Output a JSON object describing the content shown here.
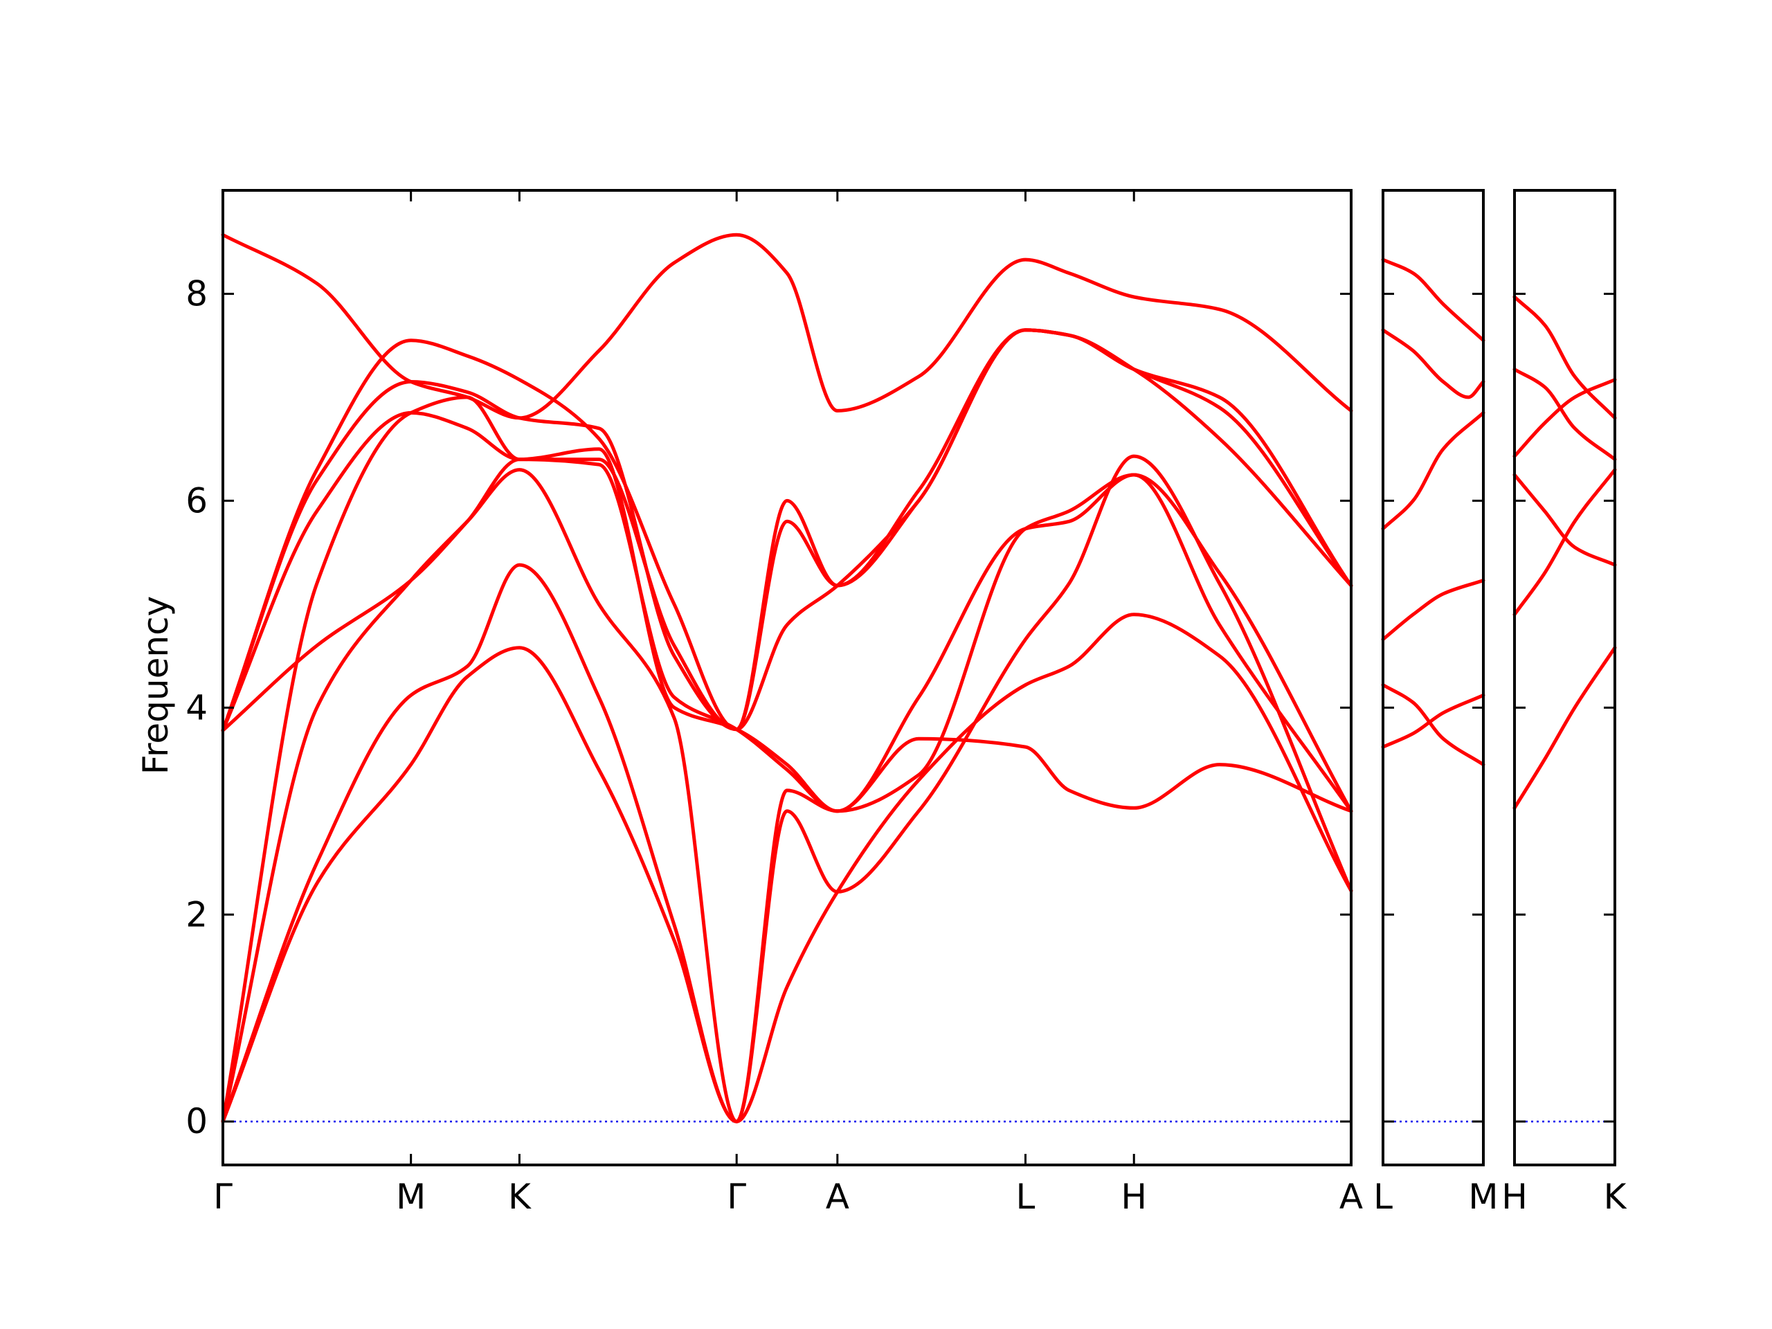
{
  "chart_data": {
    "type": "line",
    "title": "",
    "xlabel": "",
    "ylabel": "Frequency",
    "ylim": [
      -0.42,
      9.0
    ],
    "grid": false,
    "legend": "none",
    "colors": {
      "band": "#ff0000",
      "zero_line": "#0000ee",
      "axes": "#000000"
    },
    "y_ticks": [
      0,
      2,
      4,
      6,
      8
    ],
    "panels": [
      {
        "name": "panel-1",
        "xlim": [
          0,
          6.0
        ],
        "high_symmetry_points": [
          {
            "label": "Γ",
            "x": 0.0
          },
          {
            "label": "M",
            "x": 1.0
          },
          {
            "label": "K",
            "x": 1.577
          },
          {
            "label": "Γ",
            "x": 2.732
          },
          {
            "label": "A",
            "x": 3.268
          },
          {
            "label": "L",
            "x": 4.268
          },
          {
            "label": "H",
            "x": 4.845
          },
          {
            "label": "A",
            "x": 6.0
          }
        ],
        "series": [
          {
            "x": [
              0,
              0.5,
              1.0,
              1.3,
              1.577,
              2.0,
              2.4,
              2.732,
              3.0,
              3.268,
              3.7,
              4.268,
              4.5,
              4.845,
              5.3,
              6.0
            ],
            "values": [
              0.0,
              2.3,
              3.45,
              4.3,
              4.58,
              3.4,
              1.75,
              0.0,
              1.3,
              2.22,
              3.3,
              4.22,
              4.4,
              4.9,
              4.5,
              2.23
            ]
          },
          {
            "x": [
              0,
              0.5,
              1.0,
              1.3,
              1.577,
              2.0,
              2.4,
              2.732,
              3.0,
              3.268,
              3.7,
              4.268,
              4.5,
              4.845,
              5.3,
              6.0
            ],
            "values": [
              0.0,
              2.5,
              4.12,
              4.4,
              5.38,
              4.1,
              1.9,
              0.0,
              3.2,
              3.0,
              3.7,
              3.62,
              3.2,
              3.03,
              3.45,
              3.0
            ]
          },
          {
            "x": [
              0,
              0.5,
              1.0,
              1.3,
              1.577,
              2.0,
              2.4,
              2.732,
              3.0,
              3.268,
              3.7,
              4.268,
              4.5,
              4.845,
              5.3,
              6.0
            ],
            "values": [
              0.0,
              4.0,
              5.23,
              5.8,
              6.3,
              5.0,
              3.9,
              0.0,
              3.0,
              2.22,
              3.0,
              4.66,
              5.2,
              6.43,
              5.2,
              2.23
            ]
          },
          {
            "x": [
              0,
              0.5,
              1.0,
              1.3,
              1.577,
              2.0,
              2.4,
              2.732,
              3.0,
              3.268,
              3.7,
              4.268,
              4.5,
              4.845,
              5.3,
              6.0
            ],
            "values": [
              3.78,
              4.6,
              5.23,
              5.8,
              6.4,
              6.35,
              4.1,
              3.79,
              3.4,
              3.0,
              4.1,
              5.73,
              5.8,
              6.25,
              5.3,
              3.0
            ]
          },
          {
            "x": [
              0,
              0.5,
              1.0,
              1.3,
              1.577,
              2.0,
              2.4,
              2.732,
              3.0,
              3.268,
              3.7,
              4.268,
              4.5,
              4.845,
              5.3,
              6.0
            ],
            "values": [
              3.78,
              5.9,
              6.85,
              6.7,
              6.4,
              6.5,
              4.0,
              3.79,
              3.45,
              3.0,
              3.35,
              5.73,
              5.9,
              6.25,
              4.8,
              3.0
            ]
          },
          {
            "x": [
              0,
              0.5,
              1.0,
              1.3,
              1.577,
              2.0,
              2.4,
              2.732,
              3.0,
              3.268,
              3.7,
              4.268,
              4.5,
              4.845,
              5.3,
              6.0
            ],
            "values": [
              0.0,
              5.2,
              6.85,
              7.0,
              6.4,
              6.4,
              4.6,
              3.79,
              4.8,
              5.18,
              6.0,
              7.65,
              7.6,
              7.27,
              6.9,
              5.18
            ]
          },
          {
            "x": [
              0,
              0.5,
              1.0,
              1.3,
              1.577,
              2.0,
              2.4,
              2.732,
              3.0,
              3.268,
              3.7,
              4.268,
              4.5,
              4.845,
              5.3,
              6.0
            ],
            "values": [
              3.78,
              6.2,
              7.15,
              7.05,
              6.8,
              6.7,
              4.5,
              3.79,
              6.0,
              5.18,
              6.0,
              7.65,
              7.6,
              7.27,
              6.6,
              5.18
            ]
          },
          {
            "x": [
              0,
              0.5,
              1.0,
              1.3,
              1.577,
              2.0,
              2.4,
              2.732,
              3.0,
              3.268,
              3.7,
              4.268,
              4.5,
              4.845,
              5.3,
              6.0
            ],
            "values": [
              3.78,
              6.3,
              7.55,
              7.4,
              7.17,
              6.6,
              5.0,
              3.79,
              5.8,
              5.18,
              6.1,
              7.65,
              7.6,
              7.27,
              7.0,
              5.18
            ]
          },
          {
            "x": [
              0,
              0.5,
              1.0,
              1.3,
              1.577,
              2.0,
              2.4,
              2.732,
              3.0,
              3.268,
              3.7,
              4.268,
              4.5,
              4.845,
              5.3,
              6.0
            ],
            "values": [
              8.57,
              8.1,
              7.15,
              7.0,
              6.8,
              7.45,
              8.3,
              8.57,
              8.2,
              6.87,
              7.2,
              8.33,
              8.2,
              7.97,
              7.85,
              6.87
            ]
          }
        ]
      },
      {
        "name": "panel-2",
        "xlim": [
          0,
          1.0
        ],
        "high_symmetry_points": [
          {
            "label": "L",
            "x": 0.0
          },
          {
            "label": "M",
            "x": 1.0
          }
        ],
        "series": [
          {
            "x": [
              0,
              0.3,
              0.6,
              1.0
            ],
            "values": [
              3.62,
              3.75,
              3.95,
              4.12
            ]
          },
          {
            "x": [
              0,
              0.3,
              0.6,
              1.0
            ],
            "values": [
              4.22,
              4.05,
              3.7,
              3.45
            ]
          },
          {
            "x": [
              0,
              0.3,
              0.6,
              1.0
            ],
            "values": [
              4.66,
              4.9,
              5.1,
              5.23
            ]
          },
          {
            "x": [
              0,
              0.3,
              0.6,
              1.0
            ],
            "values": [
              5.73,
              6.0,
              6.5,
              6.85
            ]
          },
          {
            "x": [
              0,
              0.3,
              0.6,
              0.85,
              1.0
            ],
            "values": [
              7.65,
              7.45,
              7.15,
              7.0,
              7.15
            ]
          },
          {
            "x": [
              0,
              0.3,
              0.6,
              1.0
            ],
            "values": [
              8.33,
              8.2,
              7.9,
              7.55
            ]
          }
        ]
      },
      {
        "name": "panel-3",
        "xlim": [
          0,
          1.0
        ],
        "high_symmetry_points": [
          {
            "label": "H",
            "x": 0.0
          },
          {
            "label": "K",
            "x": 1.0
          }
        ],
        "series": [
          {
            "x": [
              0,
              0.3,
              0.6,
              1.0
            ],
            "values": [
              3.03,
              3.5,
              4.0,
              4.58
            ]
          },
          {
            "x": [
              0,
              0.3,
              0.6,
              1.0
            ],
            "values": [
              4.9,
              5.3,
              5.8,
              6.3
            ]
          },
          {
            "x": [
              0,
              0.3,
              0.6,
              1.0
            ],
            "values": [
              6.25,
              5.9,
              5.55,
              5.38
            ]
          },
          {
            "x": [
              0,
              0.3,
              0.6,
              1.0
            ],
            "values": [
              6.43,
              6.75,
              7.0,
              7.17
            ]
          },
          {
            "x": [
              0,
              0.3,
              0.6,
              1.0
            ],
            "values": [
              7.27,
              7.1,
              6.7,
              6.4
            ]
          },
          {
            "x": [
              0,
              0.3,
              0.6,
              1.0
            ],
            "values": [
              7.97,
              7.7,
              7.2,
              6.8
            ]
          }
        ]
      }
    ]
  }
}
